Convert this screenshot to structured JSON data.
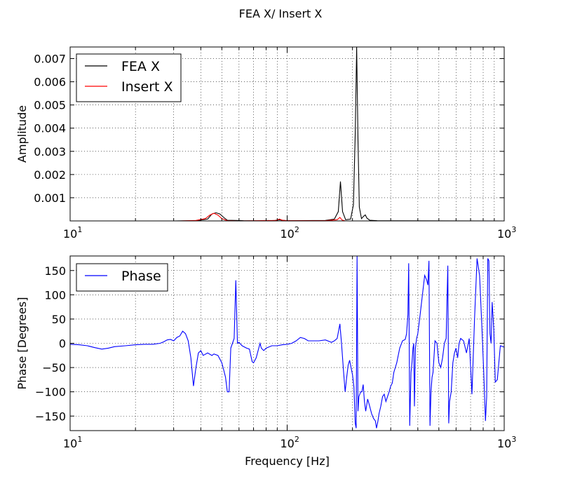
{
  "figure": {
    "title": "FEA X/ Insert X"
  },
  "chart_data": [
    {
      "type": "line",
      "xscale": "log",
      "xlim": [
        10,
        1000
      ],
      "ylim": [
        0,
        0.0075
      ],
      "xlabel": "",
      "ylabel": "Amplitude",
      "x_tick_labels": [
        {
          "base": "10",
          "exp": "1"
        },
        {
          "base": "10",
          "exp": "2"
        },
        {
          "base": "10",
          "exp": "3"
        }
      ],
      "y_tick_labels": [
        "0.001",
        "0.002",
        "0.003",
        "0.004",
        "0.005",
        "0.006",
        "0.007"
      ],
      "grid": true,
      "legend_position": "top-left",
      "series": [
        {
          "name": "FEA X",
          "color": "#000000",
          "points": [
            [
              10,
              0
            ],
            [
              30,
              0
            ],
            [
              38,
              1e-05
            ],
            [
              43,
              8e-05
            ],
            [
              45,
              0.0003
            ],
            [
              47,
              0.00035
            ],
            [
              49,
              0.0003
            ],
            [
              51,
              0.00015
            ],
            [
              53,
              3e-05
            ],
            [
              58,
              2e-05
            ],
            [
              63,
              1e-05
            ],
            [
              80,
              0
            ],
            [
              88,
              2e-05
            ],
            [
              92,
              5e-05
            ],
            [
              95,
              3e-05
            ],
            [
              100,
              1e-05
            ],
            [
              150,
              2e-05
            ],
            [
              165,
              8e-05
            ],
            [
              172,
              0.0004
            ],
            [
              176,
              0.0017
            ],
            [
              180,
              0.0004
            ],
            [
              186,
              5e-05
            ],
            [
              196,
              8e-05
            ],
            [
              202,
              0.0007
            ],
            [
              206,
              0.0038
            ],
            [
              209,
              0.0075
            ],
            [
              212,
              0.0035
            ],
            [
              215,
              0.0006
            ],
            [
              220,
              0.0001
            ],
            [
              225,
              0.0002
            ],
            [
              229,
              0.00026
            ],
            [
              233,
              0.00012
            ],
            [
              240,
              3e-05
            ],
            [
              260,
              1e-05
            ],
            [
              300,
              5e-06
            ],
            [
              1000,
              0
            ]
          ]
        },
        {
          "name": "Insert X",
          "color": "#ff0000",
          "points": [
            [
              10,
              0
            ],
            [
              32,
              0
            ],
            [
              38,
              2e-05
            ],
            [
              42,
              0.0001
            ],
            [
              44,
              0.00025
            ],
            [
              46,
              0.00033
            ],
            [
              48,
              0.00025
            ],
            [
              50,
              0.0001
            ],
            [
              53,
              1e-05
            ],
            [
              60,
              0
            ],
            [
              89,
              2e-05
            ],
            [
              92,
              8e-05
            ],
            [
              95,
              3e-05
            ],
            [
              100,
              1e-05
            ],
            [
              150,
              1e-05
            ],
            [
              170,
              5e-05
            ],
            [
              175,
              0.00015
            ],
            [
              179,
              4e-05
            ],
            [
              185,
              0
            ],
            [
              1000,
              0
            ]
          ]
        }
      ]
    },
    {
      "type": "line",
      "xscale": "log",
      "xlim": [
        10,
        1000
      ],
      "ylim": [
        -180,
        180
      ],
      "xlabel": "Frequency [Hz]",
      "ylabel": "Phase [Degrees]",
      "x_tick_labels": [
        {
          "base": "10",
          "exp": "1"
        },
        {
          "base": "10",
          "exp": "2"
        },
        {
          "base": "10",
          "exp": "3"
        }
      ],
      "y_tick_labels": [
        "150",
        "100",
        "50",
        "0",
        "−50",
        "−100",
        "−150"
      ],
      "grid": true,
      "legend_position": "top-left",
      "series": [
        {
          "name": "Phase",
          "color": "#0000ff",
          "points": [
            [
              10,
              -2
            ],
            [
              11,
              -3
            ],
            [
              12,
              -5
            ],
            [
              13,
              -9
            ],
            [
              14,
              -12
            ],
            [
              15,
              -10
            ],
            [
              16,
              -7
            ],
            [
              18,
              -5
            ],
            [
              20,
              -3
            ],
            [
              22,
              -2
            ],
            [
              24,
              -2
            ],
            [
              26,
              0
            ],
            [
              27,
              3
            ],
            [
              28,
              7
            ],
            [
              29,
              8
            ],
            [
              30,
              5
            ],
            [
              31,
              12
            ],
            [
              32,
              15
            ],
            [
              33,
              25
            ],
            [
              34,
              20
            ],
            [
              35,
              5
            ],
            [
              36,
              -30
            ],
            [
              37,
              -88
            ],
            [
              38,
              -50
            ],
            [
              39,
              -20
            ],
            [
              40,
              -15
            ],
            [
              41,
              -25
            ],
            [
              43,
              -20
            ],
            [
              45,
              -25
            ],
            [
              46,
              -22
            ],
            [
              48,
              -25
            ],
            [
              50,
              -40
            ],
            [
              51,
              -55
            ],
            [
              52,
              -70
            ],
            [
              53,
              -100
            ],
            [
              54,
              -100
            ],
            [
              55,
              -10
            ],
            [
              57,
              10
            ],
            [
              58,
              130
            ],
            [
              59,
              0
            ],
            [
              60,
              2
            ],
            [
              62,
              -5
            ],
            [
              65,
              -10
            ],
            [
              67,
              -12
            ],
            [
              69,
              -38
            ],
            [
              70,
              -40
            ],
            [
              72,
              -30
            ],
            [
              74,
              -10
            ],
            [
              75,
              0
            ],
            [
              76,
              -10
            ],
            [
              78,
              -15
            ],
            [
              80,
              -10
            ],
            [
              85,
              -5
            ],
            [
              90,
              -5
            ],
            [
              95,
              -3
            ],
            [
              100,
              -2
            ],
            [
              105,
              0
            ],
            [
              110,
              5
            ],
            [
              115,
              12
            ],
            [
              120,
              10
            ],
            [
              125,
              5
            ],
            [
              130,
              5
            ],
            [
              140,
              5
            ],
            [
              150,
              7
            ],
            [
              160,
              2
            ],
            [
              165,
              5
            ],
            [
              170,
              10
            ],
            [
              175,
              40
            ],
            [
              178,
              0
            ],
            [
              182,
              -60
            ],
            [
              185,
              -100
            ],
            [
              188,
              -70
            ],
            [
              191,
              -45
            ],
            [
              194,
              -35
            ],
            [
              197,
              -50
            ],
            [
              200,
              -65
            ],
            [
              203,
              -90
            ],
            [
              206,
              -165
            ],
            [
              208,
              -175
            ],
            [
              210,
              180
            ],
            [
              212,
              -140
            ],
            [
              214,
              -110
            ],
            [
              218,
              -100
            ],
            [
              221,
              -100
            ],
            [
              224,
              -85
            ],
            [
              227,
              -120
            ],
            [
              230,
              -140
            ],
            [
              235,
              -115
            ],
            [
              240,
              -130
            ],
            [
              245,
              -145
            ],
            [
              250,
              -155
            ],
            [
              255,
              -160
            ],
            [
              258,
              -175
            ],
            [
              262,
              -160
            ],
            [
              265,
              -145
            ],
            [
              270,
              -130
            ],
            [
              275,
              -110
            ],
            [
              280,
              -105
            ],
            [
              285,
              -120
            ],
            [
              290,
              -110
            ],
            [
              295,
              -100
            ],
            [
              300,
              -88
            ],
            [
              305,
              -82
            ],
            [
              310,
              -60
            ],
            [
              315,
              -50
            ],
            [
              320,
              -40
            ],
            [
              330,
              -10
            ],
            [
              340,
              5
            ],
            [
              350,
              8
            ],
            [
              355,
              20
            ],
            [
              360,
              60
            ],
            [
              363,
              165
            ],
            [
              367,
              -170
            ],
            [
              372,
              -60
            ],
            [
              376,
              -40
            ],
            [
              380,
              -10
            ],
            [
              383,
              0
            ],
            [
              386,
              -130
            ],
            [
              390,
              -10
            ],
            [
              395,
              10
            ],
            [
              400,
              20
            ],
            [
              410,
              60
            ],
            [
              420,
              100
            ],
            [
              430,
              140
            ],
            [
              440,
              130
            ],
            [
              445,
              120
            ],
            [
              450,
              170
            ],
            [
              455,
              -170
            ],
            [
              460,
              -100
            ],
            [
              465,
              -70
            ],
            [
              470,
              -60
            ],
            [
              480,
              5
            ],
            [
              490,
              0
            ],
            [
              500,
              -40
            ],
            [
              510,
              -50
            ],
            [
              520,
              -30
            ],
            [
              530,
              0
            ],
            [
              540,
              10
            ],
            [
              550,
              160
            ],
            [
              555,
              -165
            ],
            [
              560,
              -120
            ],
            [
              570,
              -100
            ],
            [
              580,
              -40
            ],
            [
              590,
              -20
            ],
            [
              600,
              -10
            ],
            [
              610,
              -30
            ],
            [
              620,
              0
            ],
            [
              630,
              10
            ],
            [
              650,
              5
            ],
            [
              670,
              -20
            ],
            [
              690,
              10
            ],
            [
              710,
              -105
            ],
            [
              730,
              50
            ],
            [
              750,
              175
            ],
            [
              770,
              140
            ],
            [
              790,
              30
            ],
            [
              805,
              -60
            ],
            [
              820,
              -160
            ],
            [
              830,
              -110
            ],
            [
              840,
              175
            ],
            [
              850,
              170
            ],
            [
              860,
              20
            ],
            [
              870,
              0
            ],
            [
              880,
              85
            ],
            [
              895,
              30
            ],
            [
              910,
              -80
            ],
            [
              930,
              -75
            ],
            [
              960,
              -5
            ],
            [
              1000,
              -8
            ]
          ]
        }
      ]
    }
  ]
}
